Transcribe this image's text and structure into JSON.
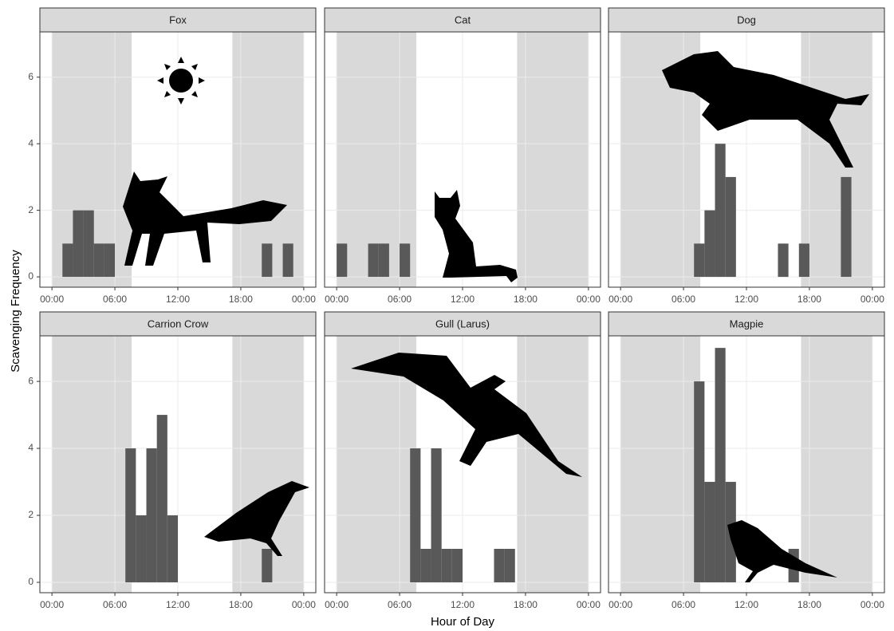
{
  "xlabel": "Hour of Day",
  "ylabel": "Scavenging Frequency",
  "chart_data": [
    {
      "type": "histogram",
      "title": "Fox",
      "color": "#595959",
      "grid": true,
      "bins": [
        0,
        1,
        2,
        3,
        4,
        5,
        6,
        7,
        8,
        9,
        10,
        11,
        12,
        13,
        14,
        15,
        16,
        17,
        18,
        19,
        20,
        21,
        22,
        23,
        24
      ],
      "values": [
        0,
        1,
        2,
        2,
        1,
        1,
        0,
        0,
        0,
        0,
        0,
        0,
        0,
        0,
        0,
        0,
        0,
        0,
        0,
        0,
        1,
        0,
        1,
        0
      ],
      "night": [
        [
          0,
          7.6
        ],
        [
          17.2,
          24
        ]
      ],
      "xlim": [
        -1.15,
        25.15
      ],
      "ylim": [
        -0.31,
        7.36
      ],
      "xticks": [
        {
          "value": 0,
          "label": "00:00"
        },
        {
          "value": 6,
          "label": "06:00"
        },
        {
          "value": 12,
          "label": "12:00"
        },
        {
          "value": 18,
          "label": "18:00"
        },
        {
          "value": 24,
          "label": "00:00"
        }
      ],
      "yticks": [
        0,
        2,
        4,
        6
      ]
    },
    {
      "type": "histogram",
      "title": "Cat",
      "color": "#595959",
      "grid": true,
      "bins": [
        0,
        1,
        2,
        3,
        4,
        5,
        6,
        7,
        8,
        9,
        10,
        11,
        12,
        13,
        14,
        15,
        16,
        17,
        18,
        19,
        20,
        21,
        22,
        23,
        24
      ],
      "values": [
        1,
        0,
        0,
        1,
        1,
        0,
        1,
        0,
        0,
        0,
        0,
        0,
        0,
        0,
        0,
        0,
        0,
        0,
        0,
        0,
        0,
        0,
        0,
        0
      ],
      "night": [
        [
          0,
          7.6
        ],
        [
          17.2,
          24
        ]
      ],
      "xlim": [
        -1.15,
        25.15
      ],
      "ylim": [
        -0.31,
        7.36
      ],
      "xticks": [
        {
          "value": 0,
          "label": "00:00"
        },
        {
          "value": 6,
          "label": "06:00"
        },
        {
          "value": 12,
          "label": "12:00"
        },
        {
          "value": 18,
          "label": "18:00"
        },
        {
          "value": 24,
          "label": "00:00"
        }
      ],
      "yticks": [
        0,
        2,
        4,
        6
      ]
    },
    {
      "type": "histogram",
      "title": "Dog",
      "color": "#595959",
      "grid": true,
      "bins": [
        0,
        1,
        2,
        3,
        4,
        5,
        6,
        7,
        8,
        9,
        10,
        11,
        12,
        13,
        14,
        15,
        16,
        17,
        18,
        19,
        20,
        21,
        22,
        23,
        24
      ],
      "values": [
        0,
        0,
        0,
        0,
        0,
        0,
        0,
        1,
        2,
        4,
        3,
        0,
        0,
        0,
        0,
        1,
        0,
        1,
        0,
        0,
        0,
        3,
        0,
        0
      ],
      "night": [
        [
          0,
          7.6
        ],
        [
          17.2,
          24
        ]
      ],
      "xlim": [
        -1.15,
        25.15
      ],
      "ylim": [
        -0.31,
        7.36
      ],
      "xticks": [
        {
          "value": 0,
          "label": "00:00"
        },
        {
          "value": 6,
          "label": "06:00"
        },
        {
          "value": 12,
          "label": "12:00"
        },
        {
          "value": 18,
          "label": "18:00"
        },
        {
          "value": 24,
          "label": "00:00"
        }
      ],
      "yticks": [
        0,
        2,
        4,
        6
      ]
    },
    {
      "type": "histogram",
      "title": "Carrion Crow",
      "color": "#595959",
      "grid": true,
      "bins": [
        0,
        1,
        2,
        3,
        4,
        5,
        6,
        7,
        8,
        9,
        10,
        11,
        12,
        13,
        14,
        15,
        16,
        17,
        18,
        19,
        20,
        21,
        22,
        23,
        24
      ],
      "values": [
        0,
        0,
        0,
        0,
        0,
        0,
        0,
        4,
        2,
        4,
        5,
        2,
        0,
        0,
        0,
        0,
        0,
        0,
        0,
        0,
        1,
        0,
        0,
        0
      ],
      "night": [
        [
          0,
          7.6
        ],
        [
          17.2,
          24
        ]
      ],
      "xlim": [
        -1.15,
        25.15
      ],
      "ylim": [
        -0.31,
        7.36
      ],
      "xticks": [
        {
          "value": 0,
          "label": "00:00"
        },
        {
          "value": 6,
          "label": "06:00"
        },
        {
          "value": 12,
          "label": "12:00"
        },
        {
          "value": 18,
          "label": "18:00"
        },
        {
          "value": 24,
          "label": "00:00"
        }
      ],
      "yticks": [
        0,
        2,
        4,
        6
      ]
    },
    {
      "type": "histogram",
      "title": "Gull (Larus)",
      "color": "#595959",
      "grid": true,
      "bins": [
        0,
        1,
        2,
        3,
        4,
        5,
        6,
        7,
        8,
        9,
        10,
        11,
        12,
        13,
        14,
        15,
        16,
        17,
        18,
        19,
        20,
        21,
        22,
        23,
        24
      ],
      "values": [
        0,
        0,
        0,
        0,
        0,
        0,
        0,
        4,
        1,
        4,
        1,
        1,
        0,
        0,
        0,
        1,
        1,
        0,
        0,
        0,
        0,
        0,
        0,
        0
      ],
      "night": [
        [
          0,
          7.6
        ],
        [
          17.2,
          24
        ]
      ],
      "xlim": [
        -1.15,
        25.15
      ],
      "ylim": [
        -0.31,
        7.36
      ],
      "xticks": [
        {
          "value": 0,
          "label": "00:00"
        },
        {
          "value": 6,
          "label": "06:00"
        },
        {
          "value": 12,
          "label": "12:00"
        },
        {
          "value": 18,
          "label": "18:00"
        },
        {
          "value": 24,
          "label": "00:00"
        }
      ],
      "yticks": [
        0,
        2,
        4,
        6
      ]
    },
    {
      "type": "histogram",
      "title": "Magpie",
      "color": "#595959",
      "grid": true,
      "bins": [
        0,
        1,
        2,
        3,
        4,
        5,
        6,
        7,
        8,
        9,
        10,
        11,
        12,
        13,
        14,
        15,
        16,
        17,
        18,
        19,
        20,
        21,
        22,
        23,
        24
      ],
      "values": [
        0,
        0,
        0,
        0,
        0,
        0,
        0,
        6,
        3,
        7,
        3,
        0,
        0,
        0,
        0,
        0,
        1,
        0,
        0,
        0,
        0,
        0,
        0,
        0
      ],
      "night": [
        [
          0,
          7.6
        ],
        [
          17.2,
          24
        ]
      ],
      "xlim": [
        -1.15,
        25.15
      ],
      "ylim": [
        -0.31,
        7.36
      ],
      "xticks": [
        {
          "value": 0,
          "label": "00:00"
        },
        {
          "value": 6,
          "label": "06:00"
        },
        {
          "value": 12,
          "label": "12:00"
        },
        {
          "value": 18,
          "label": "18:00"
        },
        {
          "value": 24,
          "label": "00:00"
        }
      ],
      "yticks": [
        0,
        2,
        4,
        6
      ]
    }
  ]
}
